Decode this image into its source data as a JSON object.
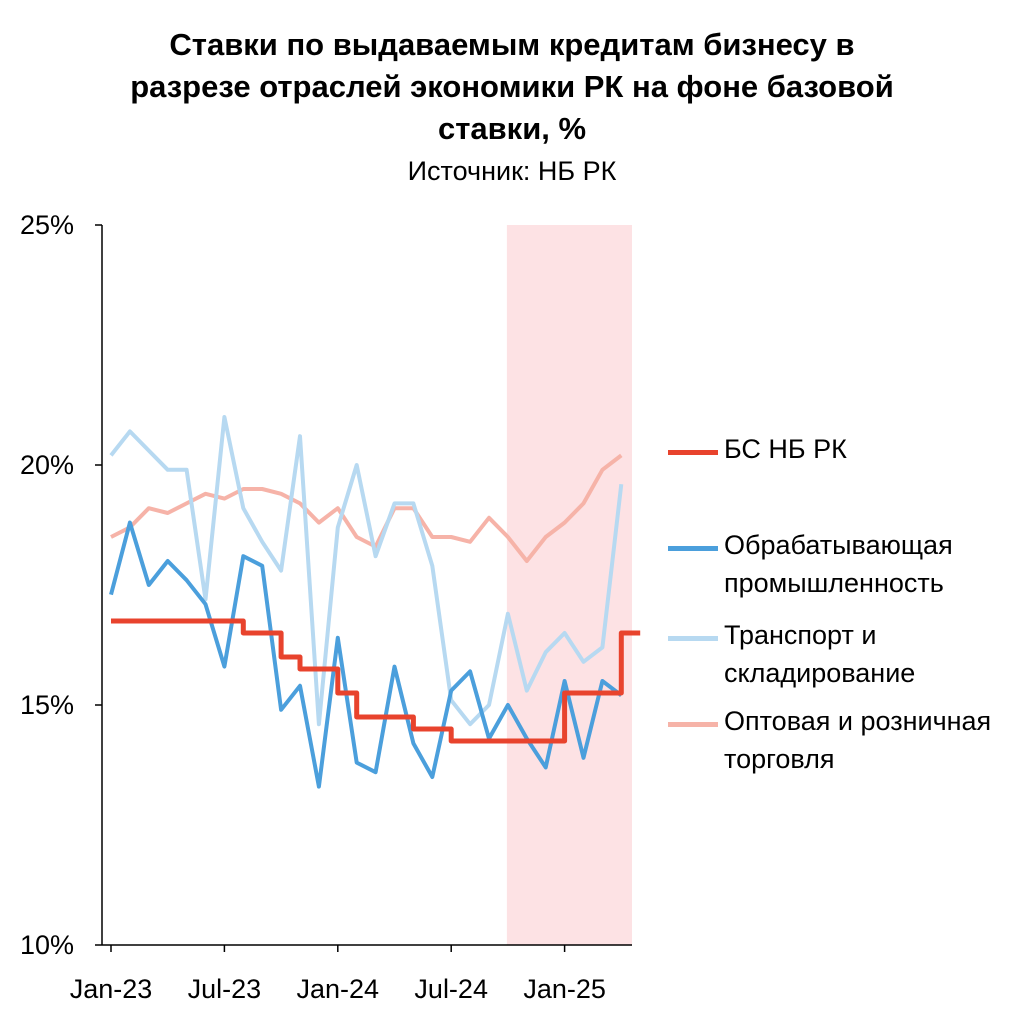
{
  "header": {
    "title_lines": [
      "Ставки по выдаваемым кредитам бизнесу в",
      "разрезе отраслей экономики РК на фоне базовой",
      "ставки, %"
    ],
    "subtitle": "Источник: НБ РК"
  },
  "chart_data": {
    "type": "line",
    "x": [
      "2023-01",
      "2023-02",
      "2023-03",
      "2023-04",
      "2023-05",
      "2023-06",
      "2023-07",
      "2023-08",
      "2023-09",
      "2023-10",
      "2023-11",
      "2023-12",
      "2024-01",
      "2024-02",
      "2024-03",
      "2024-04",
      "2024-05",
      "2024-06",
      "2024-07",
      "2024-08",
      "2024-09",
      "2024-10",
      "2024-11",
      "2024-12",
      "2025-01",
      "2025-02",
      "2025-03",
      "2025-04",
      "2025-05",
      "2025-06"
    ],
    "x_ticks": [
      "Jan-23",
      "Jul-23",
      "Jan-24",
      "Jul-24",
      "Jan-25"
    ],
    "x_tick_positions": [
      "2023-01",
      "2023-07",
      "2024-01",
      "2024-07",
      "2025-01"
    ],
    "y_ticks": [
      "10%",
      "15%",
      "20%",
      "25%"
    ],
    "y_tick_values": [
      10,
      15,
      20,
      25
    ],
    "ylim": [
      10,
      25
    ],
    "xlabel": "",
    "ylabel": "",
    "highlight_region": {
      "from": "2024-10",
      "to": "2025-06",
      "color": "#fde2e4"
    },
    "legend_placement": "right",
    "series": [
      {
        "name": "БС НБ РК",
        "color": "#e8432d",
        "width": 5,
        "shape": "step",
        "values": [
          16.75,
          16.75,
          16.75,
          16.75,
          16.75,
          16.75,
          16.75,
          16.5,
          16.5,
          16.0,
          15.75,
          15.75,
          15.25,
          14.75,
          14.75,
          14.75,
          14.5,
          14.5,
          14.25,
          14.25,
          14.25,
          14.25,
          14.25,
          14.25,
          15.25,
          15.25,
          15.25,
          16.5,
          16.5,
          null
        ]
      },
      {
        "name": "Обрабатывающая\nпромышленность",
        "color": "#4b9fdc",
        "width": 4,
        "shape": "linear",
        "values": [
          17.3,
          18.8,
          17.5,
          18.0,
          17.6,
          17.1,
          15.8,
          18.1,
          17.9,
          14.9,
          15.4,
          13.3,
          16.4,
          13.8,
          13.6,
          15.8,
          14.2,
          13.5,
          15.3,
          15.7,
          14.3,
          15.0,
          14.3,
          13.7,
          15.5,
          13.9,
          15.5,
          15.2,
          null,
          null
        ]
      },
      {
        "name": "Транспорт и\nскладирование",
        "color": "#b7d9f1",
        "width": 4,
        "shape": "linear",
        "values": [
          20.2,
          20.7,
          20.3,
          19.9,
          19.9,
          17.2,
          21.0,
          19.1,
          18.4,
          17.8,
          20.6,
          14.6,
          18.7,
          20.0,
          18.1,
          19.2,
          19.2,
          17.9,
          15.1,
          14.6,
          15.0,
          16.9,
          15.3,
          16.1,
          16.5,
          15.9,
          16.2,
          19.6,
          null,
          null
        ]
      },
      {
        "name": "Оптовая и розничная\nторговля",
        "color": "#f6b3a8",
        "width": 4,
        "shape": "linear",
        "values": [
          18.5,
          18.7,
          19.1,
          19.0,
          19.2,
          19.4,
          19.3,
          19.5,
          19.5,
          19.4,
          19.2,
          18.8,
          19.1,
          18.5,
          18.3,
          19.1,
          19.1,
          18.5,
          18.5,
          18.4,
          18.9,
          18.5,
          18.0,
          18.5,
          18.8,
          19.2,
          19.9,
          20.2,
          null,
          null
        ]
      }
    ]
  }
}
